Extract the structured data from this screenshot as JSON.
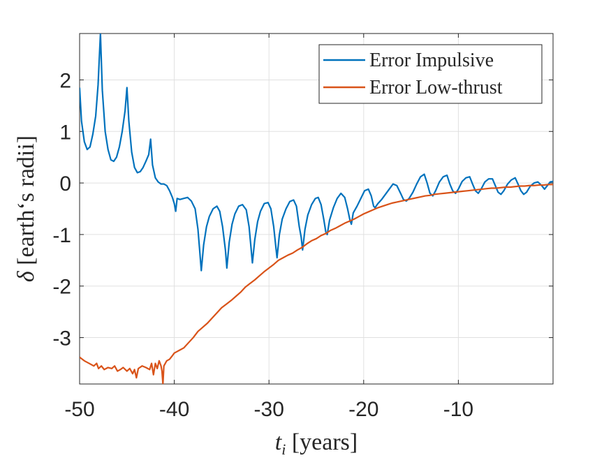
{
  "chart_data": {
    "type": "line",
    "title": "",
    "xlabel_parts": [
      "t",
      "i",
      " [years]"
    ],
    "ylabel_parts": [
      "δ",
      " [earth‘s radii]"
    ],
    "xlim": [
      -50,
      0
    ],
    "ylim": [
      -3.9,
      2.9
    ],
    "xticks": [
      -50,
      -40,
      -30,
      -20,
      -10
    ],
    "yticks": [
      -3,
      -2,
      -1,
      0,
      1,
      2
    ],
    "xtick_labels": [
      "-50",
      "-40",
      "-30",
      "-20",
      "-10"
    ],
    "ytick_labels": [
      "-3",
      "-2",
      "-1",
      "0",
      "1",
      "2"
    ],
    "grid": true,
    "legend_position": "top-right",
    "series": [
      {
        "name": "Error Impulsive",
        "color": "#0072BD",
        "points": [
          [
            -50,
            1.85
          ],
          [
            -49.8,
            1.2
          ],
          [
            -49.5,
            0.8
          ],
          [
            -49.2,
            0.65
          ],
          [
            -48.9,
            0.7
          ],
          [
            -48.6,
            0.95
          ],
          [
            -48.3,
            1.3
          ],
          [
            -48.05,
            1.9
          ],
          [
            -47.8,
            2.9
          ],
          [
            -47.6,
            1.8
          ],
          [
            -47.3,
            1.0
          ],
          [
            -47.0,
            0.65
          ],
          [
            -46.7,
            0.45
          ],
          [
            -46.4,
            0.42
          ],
          [
            -46.1,
            0.5
          ],
          [
            -45.8,
            0.7
          ],
          [
            -45.5,
            1.0
          ],
          [
            -45.2,
            1.4
          ],
          [
            -45.0,
            1.85
          ],
          [
            -44.8,
            1.2
          ],
          [
            -44.5,
            0.6
          ],
          [
            -44.2,
            0.3
          ],
          [
            -43.9,
            0.2
          ],
          [
            -43.6,
            0.22
          ],
          [
            -43.3,
            0.3
          ],
          [
            -43.0,
            0.42
          ],
          [
            -42.7,
            0.55
          ],
          [
            -42.5,
            0.85
          ],
          [
            -42.3,
            0.35
          ],
          [
            -42.0,
            0.1
          ],
          [
            -41.7,
            0.02
          ],
          [
            -41.4,
            -0.02
          ],
          [
            -41.1,
            -0.02
          ],
          [
            -40.8,
            -0.05
          ],
          [
            -40.5,
            -0.15
          ],
          [
            -40.2,
            -0.28
          ],
          [
            -40.0,
            -0.4
          ],
          [
            -39.85,
            -0.55
          ],
          [
            -39.7,
            -0.3
          ],
          [
            -39.4,
            -0.32
          ],
          [
            -39.0,
            -0.3
          ],
          [
            -38.6,
            -0.28
          ],
          [
            -38.2,
            -0.35
          ],
          [
            -37.8,
            -0.5
          ],
          [
            -37.5,
            -0.9
          ],
          [
            -37.3,
            -1.35
          ],
          [
            -37.15,
            -1.7
          ],
          [
            -36.9,
            -1.2
          ],
          [
            -36.6,
            -0.85
          ],
          [
            -36.3,
            -0.65
          ],
          [
            -35.9,
            -0.5
          ],
          [
            -35.5,
            -0.45
          ],
          [
            -35.2,
            -0.55
          ],
          [
            -34.9,
            -0.85
          ],
          [
            -34.6,
            -1.3
          ],
          [
            -34.45,
            -1.65
          ],
          [
            -34.2,
            -1.15
          ],
          [
            -33.9,
            -0.8
          ],
          [
            -33.6,
            -0.6
          ],
          [
            -33.2,
            -0.45
          ],
          [
            -32.8,
            -0.42
          ],
          [
            -32.4,
            -0.52
          ],
          [
            -32.1,
            -0.85
          ],
          [
            -31.9,
            -1.25
          ],
          [
            -31.75,
            -1.55
          ],
          [
            -31.5,
            -1.1
          ],
          [
            -31.2,
            -0.75
          ],
          [
            -30.9,
            -0.55
          ],
          [
            -30.5,
            -0.4
          ],
          [
            -30.1,
            -0.38
          ],
          [
            -29.8,
            -0.5
          ],
          [
            -29.5,
            -0.85
          ],
          [
            -29.3,
            -1.2
          ],
          [
            -29.15,
            -1.45
          ],
          [
            -28.9,
            -1.0
          ],
          [
            -28.6,
            -0.7
          ],
          [
            -28.2,
            -0.5
          ],
          [
            -27.8,
            -0.36
          ],
          [
            -27.4,
            -0.33
          ],
          [
            -27.1,
            -0.45
          ],
          [
            -26.8,
            -0.85
          ],
          [
            -26.6,
            -1.05
          ],
          [
            -26.45,
            -1.3
          ],
          [
            -26.2,
            -0.9
          ],
          [
            -25.9,
            -0.62
          ],
          [
            -25.5,
            -0.42
          ],
          [
            -25.1,
            -0.3
          ],
          [
            -24.8,
            -0.28
          ],
          [
            -24.5,
            -0.42
          ],
          [
            -24.2,
            -0.72
          ],
          [
            -24.0,
            -0.95
          ],
          [
            -23.85,
            -1.0
          ],
          [
            -23.6,
            -0.72
          ],
          [
            -23.2,
            -0.48
          ],
          [
            -22.8,
            -0.3
          ],
          [
            -22.4,
            -0.2
          ],
          [
            -22.0,
            -0.28
          ],
          [
            -21.7,
            -0.5
          ],
          [
            -21.45,
            -0.72
          ],
          [
            -21.3,
            -0.8
          ],
          [
            -21.1,
            -0.58
          ],
          [
            -20.7,
            -0.45
          ],
          [
            -20.3,
            -0.3
          ],
          [
            -19.9,
            -0.15
          ],
          [
            -19.5,
            -0.12
          ],
          [
            -19.2,
            -0.25
          ],
          [
            -18.95,
            -0.45
          ],
          [
            -18.8,
            -0.48
          ],
          [
            -18.5,
            -0.4
          ],
          [
            -18.1,
            -0.32
          ],
          [
            -17.7,
            -0.22
          ],
          [
            -17.3,
            -0.12
          ],
          [
            -16.9,
            -0.02
          ],
          [
            -16.5,
            -0.05
          ],
          [
            -16.1,
            -0.2
          ],
          [
            -15.8,
            -0.32
          ],
          [
            -15.5,
            -0.35
          ],
          [
            -15.2,
            -0.3
          ],
          [
            -14.8,
            -0.18
          ],
          [
            -14.4,
            -0.02
          ],
          [
            -14.0,
            0.12
          ],
          [
            -13.6,
            0.17
          ],
          [
            -13.3,
            0.0
          ],
          [
            -13.0,
            -0.2
          ],
          [
            -12.7,
            -0.25
          ],
          [
            -12.4,
            -0.15
          ],
          [
            -12.0,
            0.02
          ],
          [
            -11.6,
            0.12
          ],
          [
            -11.2,
            0.15
          ],
          [
            -10.9,
            -0.02
          ],
          [
            -10.6,
            -0.15
          ],
          [
            -10.3,
            -0.2
          ],
          [
            -10.0,
            -0.12
          ],
          [
            -9.6,
            0.03
          ],
          [
            -9.2,
            0.1
          ],
          [
            -8.8,
            0.12
          ],
          [
            -8.5,
            -0.02
          ],
          [
            -8.2,
            -0.15
          ],
          [
            -7.9,
            -0.2
          ],
          [
            -7.6,
            -0.12
          ],
          [
            -7.2,
            0.02
          ],
          [
            -6.8,
            0.08
          ],
          [
            -6.4,
            0.08
          ],
          [
            -6.1,
            -0.05
          ],
          [
            -5.8,
            -0.18
          ],
          [
            -5.5,
            -0.22
          ],
          [
            -5.2,
            -0.15
          ],
          [
            -4.8,
            -0.02
          ],
          [
            -4.4,
            0.06
          ],
          [
            -4.0,
            0.1
          ],
          [
            -3.7,
            -0.02
          ],
          [
            -3.4,
            -0.15
          ],
          [
            -3.1,
            -0.22
          ],
          [
            -2.8,
            -0.18
          ],
          [
            -2.4,
            -0.06
          ],
          [
            -2.0,
            0.0
          ],
          [
            -1.6,
            0.02
          ],
          [
            -1.2,
            -0.05
          ],
          [
            -0.9,
            -0.12
          ],
          [
            -0.6,
            -0.05
          ],
          [
            -0.3,
            0.02
          ],
          [
            0,
            0.03
          ]
        ]
      },
      {
        "name": "Error Low-thrust",
        "color": "#D95319",
        "points": [
          [
            -50,
            -3.38
          ],
          [
            -49.5,
            -3.45
          ],
          [
            -49,
            -3.5
          ],
          [
            -48.5,
            -3.55
          ],
          [
            -48.2,
            -3.5
          ],
          [
            -48,
            -3.6
          ],
          [
            -47.7,
            -3.55
          ],
          [
            -47.4,
            -3.62
          ],
          [
            -47,
            -3.58
          ],
          [
            -46.6,
            -3.6
          ],
          [
            -46.3,
            -3.55
          ],
          [
            -46,
            -3.65
          ],
          [
            -45.7,
            -3.62
          ],
          [
            -45.4,
            -3.58
          ],
          [
            -45,
            -3.65
          ],
          [
            -44.7,
            -3.6
          ],
          [
            -44.4,
            -3.7
          ],
          [
            -44.2,
            -3.62
          ],
          [
            -44.0,
            -3.78
          ],
          [
            -43.8,
            -3.6
          ],
          [
            -43.4,
            -3.55
          ],
          [
            -43,
            -3.58
          ],
          [
            -42.6,
            -3.62
          ],
          [
            -42.4,
            -3.5
          ],
          [
            -42.2,
            -3.72
          ],
          [
            -42.0,
            -3.5
          ],
          [
            -41.8,
            -3.6
          ],
          [
            -41.6,
            -3.45
          ],
          [
            -41.4,
            -3.55
          ],
          [
            -41.3,
            -3.65
          ],
          [
            -41.2,
            -3.9
          ],
          [
            -41.1,
            -3.55
          ],
          [
            -40.8,
            -3.45
          ],
          [
            -40.5,
            -3.42
          ],
          [
            -40.2,
            -3.35
          ],
          [
            -40.0,
            -3.3
          ],
          [
            -39.5,
            -3.25
          ],
          [
            -39.0,
            -3.2
          ],
          [
            -38.5,
            -3.1
          ],
          [
            -38.0,
            -3.0
          ],
          [
            -37.5,
            -2.88
          ],
          [
            -37.0,
            -2.8
          ],
          [
            -36.5,
            -2.72
          ],
          [
            -36.0,
            -2.62
          ],
          [
            -35.5,
            -2.52
          ],
          [
            -35.0,
            -2.42
          ],
          [
            -34.5,
            -2.35
          ],
          [
            -34.0,
            -2.28
          ],
          [
            -33.5,
            -2.2
          ],
          [
            -33.0,
            -2.12
          ],
          [
            -32.5,
            -2.02
          ],
          [
            -32.0,
            -1.95
          ],
          [
            -31.5,
            -1.88
          ],
          [
            -31.0,
            -1.8
          ],
          [
            -30.5,
            -1.72
          ],
          [
            -30.0,
            -1.65
          ],
          [
            -29.5,
            -1.58
          ],
          [
            -29.0,
            -1.5
          ],
          [
            -28.5,
            -1.45
          ],
          [
            -28.0,
            -1.4
          ],
          [
            -27.5,
            -1.36
          ],
          [
            -27.0,
            -1.3
          ],
          [
            -26.5,
            -1.25
          ],
          [
            -26.0,
            -1.18
          ],
          [
            -25.5,
            -1.12
          ],
          [
            -25.0,
            -1.08
          ],
          [
            -24.5,
            -1.02
          ],
          [
            -24.0,
            -0.98
          ],
          [
            -23.5,
            -0.92
          ],
          [
            -23.0,
            -0.88
          ],
          [
            -22.5,
            -0.83
          ],
          [
            -22.0,
            -0.78
          ],
          [
            -21.5,
            -0.74
          ],
          [
            -21.0,
            -0.7
          ],
          [
            -20.5,
            -0.65
          ],
          [
            -20.0,
            -0.6
          ],
          [
            -19.5,
            -0.56
          ],
          [
            -19.0,
            -0.52
          ],
          [
            -18.5,
            -0.48
          ],
          [
            -18.0,
            -0.45
          ],
          [
            -17.5,
            -0.42
          ],
          [
            -17.0,
            -0.39
          ],
          [
            -16.5,
            -0.37
          ],
          [
            -16.0,
            -0.35
          ],
          [
            -15.5,
            -0.33
          ],
          [
            -15.0,
            -0.31
          ],
          [
            -14.5,
            -0.29
          ],
          [
            -14.0,
            -0.27
          ],
          [
            -13.5,
            -0.25
          ],
          [
            -13.0,
            -0.24
          ],
          [
            -12.5,
            -0.22
          ],
          [
            -12.0,
            -0.21
          ],
          [
            -11.5,
            -0.2
          ],
          [
            -11.0,
            -0.19
          ],
          [
            -10.5,
            -0.18
          ],
          [
            -10.0,
            -0.17
          ],
          [
            -9.5,
            -0.16
          ],
          [
            -9.0,
            -0.15
          ],
          [
            -8.5,
            -0.14
          ],
          [
            -8.0,
            -0.13
          ],
          [
            -7.5,
            -0.12
          ],
          [
            -7.0,
            -0.11
          ],
          [
            -6.5,
            -0.1
          ],
          [
            -6.0,
            -0.1
          ],
          [
            -5.5,
            -0.09
          ],
          [
            -5.0,
            -0.08
          ],
          [
            -4.5,
            -0.08
          ],
          [
            -4.0,
            -0.07
          ],
          [
            -3.5,
            -0.06
          ],
          [
            -3.0,
            -0.06
          ],
          [
            -2.5,
            -0.05
          ],
          [
            -2.0,
            -0.05
          ],
          [
            -1.5,
            -0.04
          ],
          [
            -1.0,
            -0.04
          ],
          [
            -0.5,
            -0.03
          ],
          [
            0,
            -0.03
          ]
        ]
      }
    ]
  }
}
